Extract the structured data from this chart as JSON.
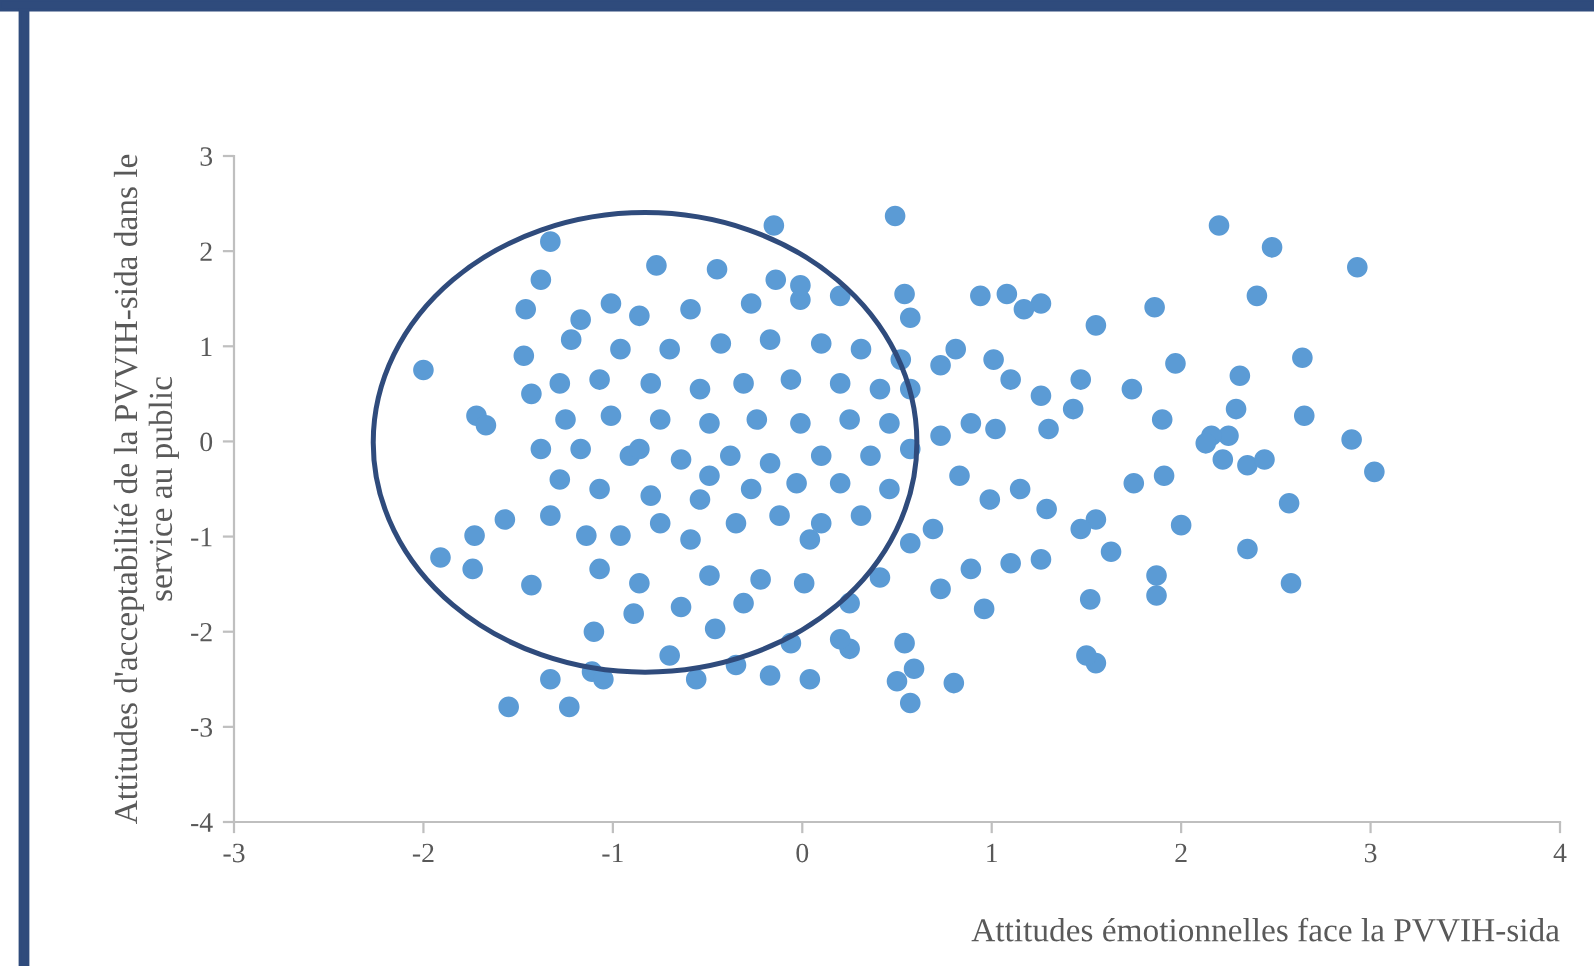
{
  "chart_data": {
    "type": "scatter",
    "xlabel": "Attitudes émotionnelles face la PVVIH-sida",
    "ylabel": "Attitudes d'acceptabilité de la PVVIH-sida dans le\nservice au public",
    "xlim": [
      -3,
      4
    ],
    "ylim": [
      -4,
      3
    ],
    "xticks": [
      -3,
      -2,
      -1,
      0,
      1,
      2,
      3,
      4
    ],
    "yticks": [
      -4,
      -3,
      -2,
      -1,
      0,
      1,
      2,
      3
    ],
    "grid": false,
    "marker": "circle",
    "series": [
      {
        "color": "#5b9bd5",
        "x": [
          -2.0,
          -1.91,
          -1.55,
          -1.23,
          -1.33,
          -1.38,
          -1.46,
          -1.72,
          -1.67,
          -1.57,
          -1.73,
          -1.74,
          -1.43,
          -1.33,
          -1.11,
          -0.15,
          0.49,
          0.54,
          0.57,
          2.2,
          2.48,
          2.93,
          2.4,
          1.86,
          2.64,
          3.02,
          2.9,
          2.57,
          2.58,
          2.35,
          2.35,
          2.25,
          2.16,
          2.13,
          2.22,
          2.29,
          2.31,
          2.65,
          2.44,
          2.0,
          1.87,
          1.87,
          1.55,
          1.5,
          1.52,
          1.63,
          1.55,
          1.75,
          1.91,
          1.9,
          1.74,
          1.97,
          1.47,
          1.55,
          1.26,
          1.08,
          1.17,
          0.94,
          0.73,
          0.81,
          1.01,
          1.1,
          1.26,
          1.43,
          1.3,
          1.02,
          0.89,
          0.73,
          0.83,
          0.99,
          1.15,
          1.29,
          1.47,
          1.26,
          1.1,
          0.89,
          0.73,
          0.96,
          0.41,
          0.57,
          0.69,
          0.25,
          0.2,
          0.54,
          0.59,
          0.57,
          0.8,
          0.5,
          0.04,
          -0.06,
          -0.17,
          -0.35,
          -0.56,
          -0.7,
          -1.05,
          -1.1,
          -0.89,
          -0.64,
          -0.46,
          -0.31,
          0.01,
          0.25,
          -0.22,
          -0.49,
          -0.86,
          -1.07,
          -1.14,
          -0.96,
          -0.75,
          -0.59,
          -0.35,
          -0.12,
          0.1,
          0.31,
          0.46,
          0.2,
          -0.03,
          -0.27,
          -0.54,
          -0.8,
          -1.07,
          -1.28,
          -1.33,
          -1.38,
          -1.17,
          -0.91,
          -0.64,
          -0.38,
          -0.17,
          0.1,
          0.36,
          0.57,
          0.46,
          0.25,
          -0.01,
          -0.24,
          -0.49,
          -0.75,
          -1.01,
          -1.25,
          -1.28,
          -1.07,
          -0.8,
          -0.54,
          -0.31,
          -0.06,
          0.2,
          0.41,
          0.57,
          0.52,
          0.31,
          0.1,
          -0.17,
          -0.43,
          -0.7,
          -0.96,
          -1.22,
          -1.17,
          -0.86,
          -0.59,
          -0.27,
          -0.01,
          0.2,
          -0.01,
          -0.14,
          -0.45,
          -0.77,
          -1.01,
          -1.47,
          -1.43,
          0.04,
          -0.49,
          -0.86
        ],
        "values": [
          0.75,
          -1.22,
          -2.79,
          -2.79,
          2.1,
          1.7,
          1.39,
          0.27,
          0.17,
          -0.82,
          -0.99,
          -1.34,
          -1.51,
          -2.5,
          -2.42,
          2.27,
          2.37,
          1.55,
          1.3,
          2.27,
          2.04,
          1.83,
          1.53,
          1.41,
          0.88,
          -0.32,
          0.02,
          -0.65,
          -1.49,
          -1.13,
          -0.25,
          0.06,
          0.06,
          -0.02,
          -0.19,
          0.34,
          0.69,
          0.27,
          -0.19,
          -0.88,
          -1.41,
          -1.62,
          -2.33,
          -2.25,
          -1.66,
          -1.16,
          -0.82,
          -0.44,
          -0.36,
          0.23,
          0.55,
          0.82,
          0.65,
          1.22,
          1.45,
          1.55,
          1.39,
          1.53,
          0.8,
          0.97,
          0.86,
          0.65,
          0.48,
          0.34,
          0.13,
          0.13,
          0.19,
          0.06,
          -0.36,
          -0.61,
          -0.5,
          -0.71,
          -0.92,
          -1.24,
          -1.28,
          -1.34,
          -1.55,
          -1.76,
          -1.43,
          -1.07,
          -0.92,
          -2.18,
          -2.08,
          -2.12,
          -2.39,
          -2.75,
          -2.54,
          -2.52,
          -2.5,
          -2.12,
          -2.46,
          -2.35,
          -2.5,
          -2.25,
          -2.5,
          -2.0,
          -1.81,
          -1.74,
          -1.97,
          -1.7,
          -1.49,
          -1.7,
          -1.45,
          -1.41,
          -1.49,
          -1.34,
          -0.99,
          -0.99,
          -0.86,
          -1.03,
          -0.86,
          -0.78,
          -0.86,
          -0.78,
          -0.5,
          -0.44,
          -0.44,
          -0.5,
          -0.61,
          -0.57,
          -0.5,
          -0.4,
          -0.78,
          -0.08,
          -0.08,
          -0.15,
          -0.19,
          -0.15,
          -0.23,
          -0.15,
          -0.15,
          -0.08,
          0.19,
          0.23,
          0.19,
          0.23,
          0.19,
          0.23,
          0.27,
          0.23,
          0.61,
          0.65,
          0.61,
          0.55,
          0.61,
          0.65,
          0.61,
          0.55,
          0.55,
          0.86,
          0.97,
          1.03,
          1.07,
          1.03,
          0.97,
          0.97,
          1.07,
          1.28,
          1.32,
          1.39,
          1.45,
          1.49,
          1.53,
          1.64,
          1.7,
          1.81,
          1.85,
          1.45,
          0.9,
          0.5,
          -1.03,
          -0.36,
          -0.08
        ]
      }
    ]
  }
}
